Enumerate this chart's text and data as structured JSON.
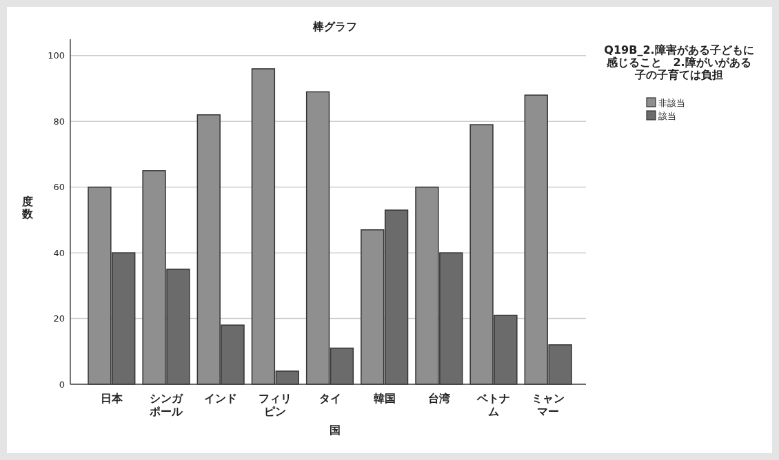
{
  "chart_data": {
    "type": "bar",
    "title": "棒グラフ",
    "xlabel": "国",
    "ylabel": "度数",
    "legend_title": "Q19B_2.障害がある子どもに感じること　2.障がいがある子の子育ては負担",
    "categories": [
      "日本",
      "シンガポール",
      "インド",
      "フィリピン",
      "タイ",
      "韓国",
      "台湾",
      "ベトナム",
      "ミャンマー"
    ],
    "series": [
      {
        "name": "非該当",
        "color": "#8f8f8f",
        "values": [
          60,
          65,
          82,
          96,
          89,
          47,
          60,
          79,
          88
        ]
      },
      {
        "name": "該当",
        "color": "#6b6b6b",
        "values": [
          40,
          35,
          18,
          4,
          11,
          53,
          40,
          21,
          12
        ]
      }
    ],
    "ylim": [
      0,
      105
    ],
    "yticks": [
      0,
      20,
      40,
      60,
      80,
      100
    ],
    "grid": "y",
    "legend": "top right"
  }
}
